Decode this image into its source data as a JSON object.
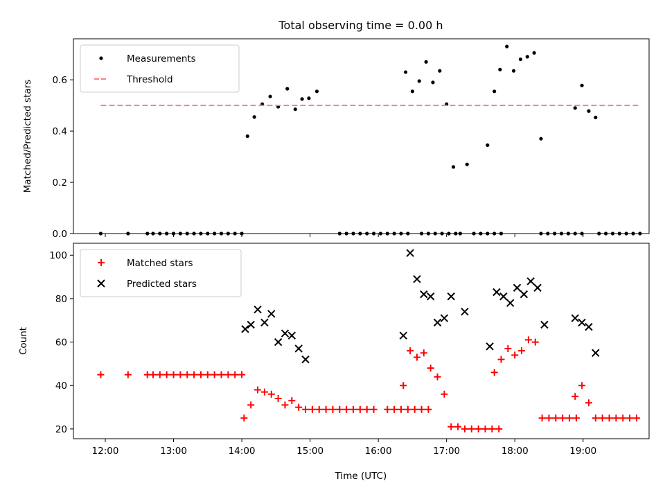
{
  "figure": {
    "title": "Total observing time = 0.00 h",
    "xlabel": "Time (UTC)",
    "x_ticks": [
      "12:00",
      "13:00",
      "14:00",
      "15:00",
      "16:00",
      "17:00",
      "18:00",
      "19:00"
    ]
  },
  "chart_data": [
    {
      "type": "scatter",
      "ylabel": "Matched/Predicted stars",
      "xlim": [
        "11:32",
        "19:58"
      ],
      "ylim": [
        0,
        0.76
      ],
      "y_ticks": [
        "0.0",
        "0.2",
        "0.4",
        "0.6"
      ],
      "legend_position": "upper-left",
      "series": [
        {
          "name": "Measurements",
          "marker": "dot",
          "color": "#000000",
          "points": [
            [
              "11:56",
              0.0
            ],
            [
              "12:20",
              0.0
            ],
            [
              "12:37",
              0.0
            ],
            [
              "12:42",
              0.0
            ],
            [
              "12:48",
              0.0
            ],
            [
              "12:54",
              0.0
            ],
            [
              "13:00",
              0.0
            ],
            [
              "13:06",
              0.0
            ],
            [
              "13:12",
              0.0
            ],
            [
              "13:18",
              0.0
            ],
            [
              "13:24",
              0.0
            ],
            [
              "13:30",
              0.0
            ],
            [
              "13:36",
              0.0
            ],
            [
              "13:42",
              0.0
            ],
            [
              "13:48",
              0.0
            ],
            [
              "13:54",
              0.0
            ],
            [
              "14:00",
              0.0
            ],
            [
              "14:05",
              0.38
            ],
            [
              "14:11",
              0.455
            ],
            [
              "14:18",
              0.505
            ],
            [
              "14:25",
              0.535
            ],
            [
              "14:32",
              0.495
            ],
            [
              "14:40",
              0.565
            ],
            [
              "14:47",
              0.485
            ],
            [
              "14:53",
              0.525
            ],
            [
              "14:59",
              0.528
            ],
            [
              "15:06",
              0.555
            ],
            [
              "15:26",
              0.0
            ],
            [
              "15:32",
              0.0
            ],
            [
              "15:38",
              0.0
            ],
            [
              "15:44",
              0.0
            ],
            [
              "15:50",
              0.0
            ],
            [
              "15:56",
              0.0
            ],
            [
              "16:02",
              0.0
            ],
            [
              "16:08",
              0.0
            ],
            [
              "16:14",
              0.0
            ],
            [
              "16:20",
              0.0
            ],
            [
              "16:26",
              0.0
            ],
            [
              "16:38",
              0.0
            ],
            [
              "16:44",
              0.0
            ],
            [
              "16:50",
              0.0
            ],
            [
              "16:56",
              0.0
            ],
            [
              "17:02",
              0.0
            ],
            [
              "17:08",
              0.0
            ],
            [
              "16:24",
              0.63
            ],
            [
              "16:30",
              0.555
            ],
            [
              "16:36",
              0.595
            ],
            [
              "16:42",
              0.67
            ],
            [
              "16:48",
              0.59
            ],
            [
              "16:54",
              0.635
            ],
            [
              "17:00",
              0.505
            ],
            [
              "17:06",
              0.26
            ],
            [
              "17:12",
              0.0
            ],
            [
              "17:18",
              0.27
            ],
            [
              "17:24",
              0.0
            ],
            [
              "17:30",
              0.0
            ],
            [
              "17:36",
              0.0
            ],
            [
              "17:42",
              0.0
            ],
            [
              "17:48",
              0.0
            ],
            [
              "17:36",
              0.345
            ],
            [
              "17:42",
              0.555
            ],
            [
              "17:47",
              0.64
            ],
            [
              "17:53",
              0.73
            ],
            [
              "17:59",
              0.635
            ],
            [
              "18:05",
              0.68
            ],
            [
              "18:11",
              0.69
            ],
            [
              "18:17",
              0.705
            ],
            [
              "18:23",
              0.37
            ],
            [
              "18:23",
              0.0
            ],
            [
              "18:29",
              0.0
            ],
            [
              "18:35",
              0.0
            ],
            [
              "18:41",
              0.0
            ],
            [
              "18:47",
              0.0
            ],
            [
              "18:53",
              0.0
            ],
            [
              "18:59",
              0.0
            ],
            [
              "18:53",
              0.49
            ],
            [
              "18:59",
              0.578
            ],
            [
              "19:05",
              0.478
            ],
            [
              "19:11",
              0.453
            ],
            [
              "19:14",
              0.0
            ],
            [
              "19:20",
              0.0
            ],
            [
              "19:26",
              0.0
            ],
            [
              "19:32",
              0.0
            ],
            [
              "19:38",
              0.0
            ],
            [
              "19:44",
              0.0
            ],
            [
              "19:50",
              0.0
            ]
          ]
        },
        {
          "name": "Threshold",
          "marker": "dashed-line",
          "color": "#ff7f7f",
          "points": [
            [
              "11:56",
              0.5
            ],
            [
              "19:50",
              0.5
            ]
          ]
        }
      ]
    },
    {
      "type": "scatter",
      "ylabel": "Count",
      "xlim": [
        "11:32",
        "19:58"
      ],
      "ylim": [
        15.5,
        105.5
      ],
      "y_ticks": [
        "20",
        "40",
        "60",
        "80",
        "100"
      ],
      "legend_position": "upper-left",
      "series": [
        {
          "name": "Matched stars",
          "marker": "plus",
          "color": "#ff0000",
          "points": [
            [
              "11:56",
              45
            ],
            [
              "12:20",
              45
            ],
            [
              "12:37",
              45
            ],
            [
              "12:42",
              45
            ],
            [
              "12:48",
              45
            ],
            [
              "12:54",
              45
            ],
            [
              "13:00",
              45
            ],
            [
              "13:06",
              45
            ],
            [
              "13:12",
              45
            ],
            [
              "13:18",
              45
            ],
            [
              "13:24",
              45
            ],
            [
              "13:30",
              45
            ],
            [
              "13:36",
              45
            ],
            [
              "13:42",
              45
            ],
            [
              "13:48",
              45
            ],
            [
              "13:54",
              45
            ],
            [
              "14:00",
              45
            ],
            [
              "14:02",
              25
            ],
            [
              "14:08",
              31
            ],
            [
              "14:14",
              38
            ],
            [
              "14:20",
              37
            ],
            [
              "14:26",
              36
            ],
            [
              "14:32",
              34
            ],
            [
              "14:38",
              31
            ],
            [
              "14:44",
              33
            ],
            [
              "14:50",
              30
            ],
            [
              "14:56",
              29
            ],
            [
              "15:02",
              29
            ],
            [
              "15:08",
              29
            ],
            [
              "15:14",
              29
            ],
            [
              "15:20",
              29
            ],
            [
              "15:26",
              29
            ],
            [
              "15:32",
              29
            ],
            [
              "15:38",
              29
            ],
            [
              "15:44",
              29
            ],
            [
              "15:50",
              29
            ],
            [
              "15:56",
              29
            ],
            [
              "16:08",
              29
            ],
            [
              "16:14",
              29
            ],
            [
              "16:20",
              29
            ],
            [
              "16:26",
              29
            ],
            [
              "16:32",
              29
            ],
            [
              "16:38",
              29
            ],
            [
              "16:44",
              29
            ],
            [
              "16:22",
              40
            ],
            [
              "16:28",
              56
            ],
            [
              "16:34",
              53
            ],
            [
              "16:40",
              55
            ],
            [
              "16:46",
              48
            ],
            [
              "16:52",
              44
            ],
            [
              "16:58",
              36
            ],
            [
              "17:04",
              21
            ],
            [
              "17:10",
              21
            ],
            [
              "17:16",
              20
            ],
            [
              "17:22",
              20
            ],
            [
              "17:28",
              20
            ],
            [
              "17:34",
              20
            ],
            [
              "17:40",
              20
            ],
            [
              "17:46",
              20
            ],
            [
              "17:42",
              46
            ],
            [
              "17:48",
              52
            ],
            [
              "17:54",
              57
            ],
            [
              "18:00",
              54
            ],
            [
              "18:06",
              56
            ],
            [
              "18:12",
              61
            ],
            [
              "18:18",
              60
            ],
            [
              "18:24",
              25
            ],
            [
              "18:30",
              25
            ],
            [
              "18:36",
              25
            ],
            [
              "18:42",
              25
            ],
            [
              "18:48",
              25
            ],
            [
              "18:54",
              25
            ],
            [
              "18:53",
              35
            ],
            [
              "18:59",
              40
            ],
            [
              "19:05",
              32
            ],
            [
              "19:11",
              25
            ],
            [
              "19:17",
              25
            ],
            [
              "19:23",
              25
            ],
            [
              "19:29",
              25
            ],
            [
              "19:35",
              25
            ],
            [
              "19:41",
              25
            ],
            [
              "19:47",
              25
            ]
          ]
        },
        {
          "name": "Predicted stars",
          "marker": "x",
          "color": "#000000",
          "points": [
            [
              "14:03",
              66
            ],
            [
              "14:08",
              68
            ],
            [
              "14:14",
              75
            ],
            [
              "14:20",
              69
            ],
            [
              "14:26",
              73
            ],
            [
              "14:32",
              60
            ],
            [
              "14:38",
              64
            ],
            [
              "14:44",
              63
            ],
            [
              "14:50",
              57
            ],
            [
              "14:56",
              52
            ],
            [
              "16:22",
              63
            ],
            [
              "16:28",
              101
            ],
            [
              "16:34",
              89
            ],
            [
              "16:40",
              82
            ],
            [
              "16:46",
              81
            ],
            [
              "16:52",
              69
            ],
            [
              "16:58",
              71
            ],
            [
              "17:04",
              81
            ],
            [
              "17:16",
              74
            ],
            [
              "17:38",
              58
            ],
            [
              "17:44",
              83
            ],
            [
              "17:50",
              81
            ],
            [
              "17:56",
              78
            ],
            [
              "18:02",
              85
            ],
            [
              "18:08",
              82
            ],
            [
              "18:14",
              88
            ],
            [
              "18:20",
              85
            ],
            [
              "18:26",
              68
            ],
            [
              "18:53",
              71
            ],
            [
              "18:59",
              69
            ],
            [
              "19:05",
              67
            ],
            [
              "19:11",
              55
            ]
          ]
        }
      ]
    }
  ]
}
